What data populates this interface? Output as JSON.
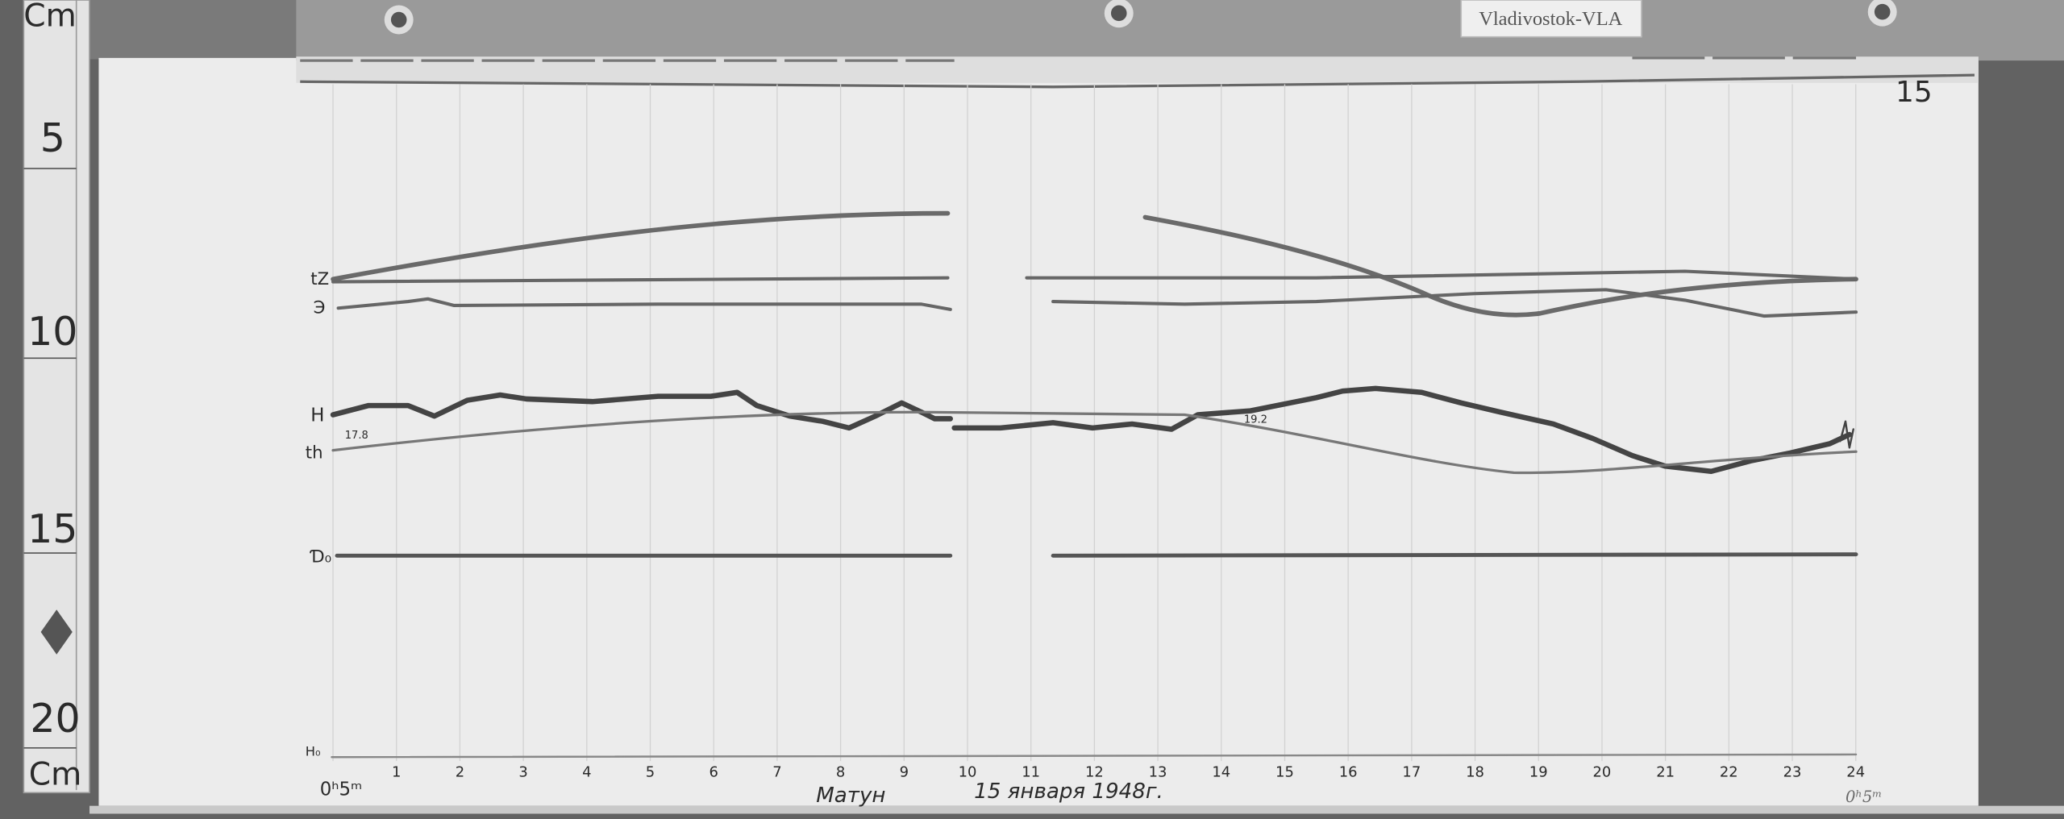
{
  "station_label": "Vladivostok-VLA",
  "sheet_number": "15",
  "ruler": {
    "unit_top": "Cm",
    "unit_bottom": "Cm",
    "marks": [
      "5",
      "10",
      "15",
      "20"
    ]
  },
  "trace_labels": {
    "tz": "tZ",
    "d": "Э",
    "h": "H",
    "th": "th",
    "d0": "Ɗ₀",
    "h0": "H₀"
  },
  "annotations": {
    "th_start": "17.8",
    "th_mid": "19.2"
  },
  "time_axis": {
    "start": "0ʰ5ᵐ",
    "end": "0ʰ5ᵐ",
    "hours": [
      "1",
      "2",
      "3",
      "4",
      "5",
      "6",
      "7",
      "8",
      "9",
      "10",
      "11",
      "12",
      "13",
      "14",
      "15",
      "16",
      "17",
      "18",
      "19",
      "20",
      "21",
      "22",
      "23",
      "24"
    ]
  },
  "footer": {
    "observer": "Матун",
    "date": "15 января 1948г."
  }
}
